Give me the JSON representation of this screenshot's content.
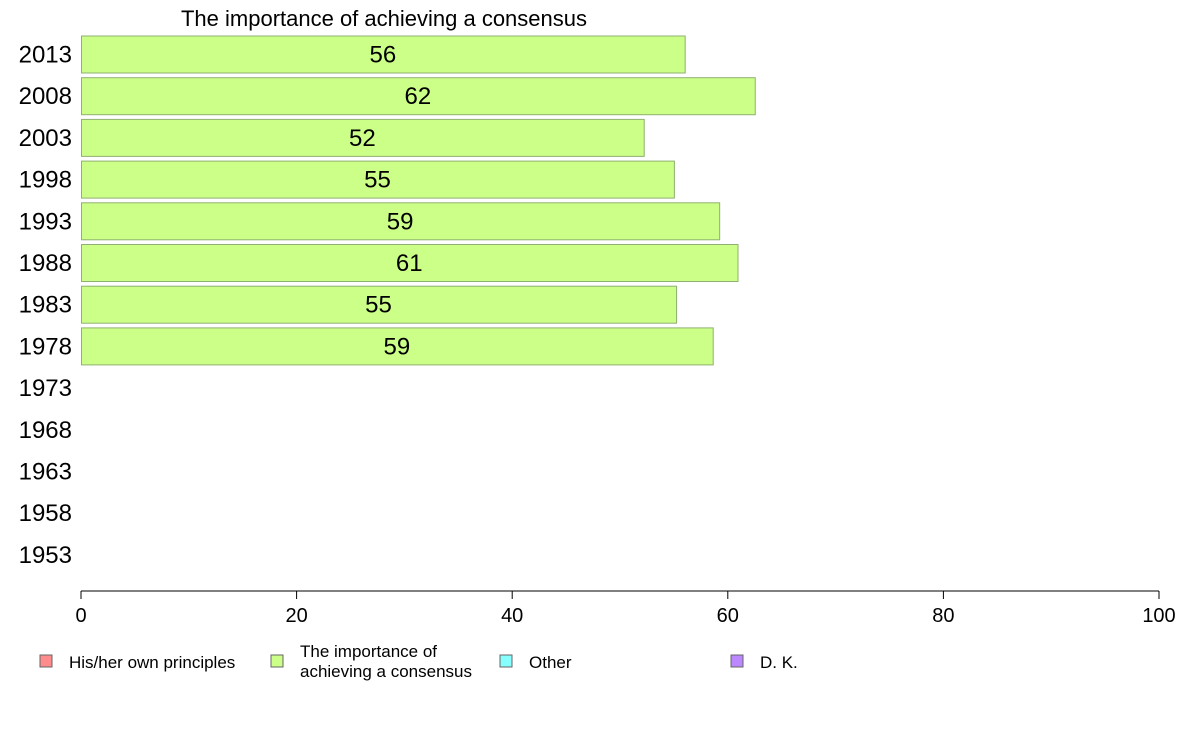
{
  "chart_data": {
    "type": "bar",
    "orientation": "horizontal",
    "title": "The importance of achieving a consensus",
    "categories": [
      "2013",
      "2008",
      "2003",
      "1998",
      "1993",
      "1988",
      "1983",
      "1978",
      "1973",
      "1968",
      "1963",
      "1958",
      "1953"
    ],
    "series": [
      {
        "name": "The importance of achieving a consensus",
        "color": "#ccff88",
        "values": [
          56,
          62.5,
          52.2,
          55,
          59.2,
          60.9,
          55.2,
          58.6,
          null,
          null,
          null,
          null,
          null
        ],
        "labels": [
          "56",
          "62",
          "52",
          "55",
          "59",
          "61",
          "55",
          "59",
          "",
          "",
          "",
          "",
          ""
        ]
      }
    ],
    "xlim": [
      0,
      100
    ],
    "xticks": [
      "0",
      "20",
      "40",
      "60",
      "80",
      "100"
    ],
    "grid": false,
    "legend": {
      "placement": "bottom",
      "items": [
        {
          "lines": [
            "His/her own principles"
          ],
          "color": "#ff8c8c"
        },
        {
          "lines": [
            "The importance of",
            "achieving a consensus"
          ],
          "color": "#ccff88"
        },
        {
          "lines": [
            "Other"
          ],
          "color": "#88ffff"
        },
        {
          "lines": [
            "D. K."
          ],
          "color": "#bb88ff"
        }
      ]
    }
  }
}
